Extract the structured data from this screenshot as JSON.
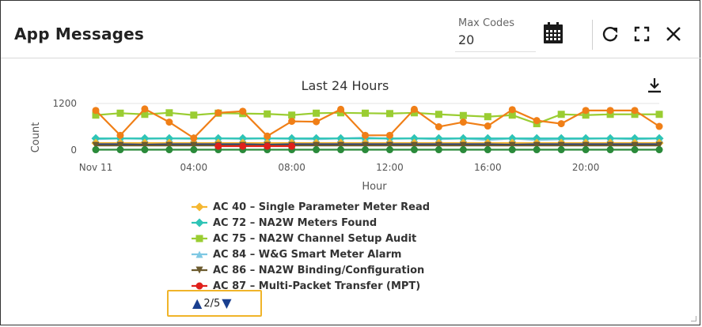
{
  "header": {
    "title": "App Messages",
    "max_codes": {
      "label": "Max Codes",
      "value": "20"
    },
    "icons": [
      "calendar-icon",
      "refresh-icon",
      "expand-icon",
      "close-icon"
    ]
  },
  "chart_data": {
    "type": "line",
    "title": "Last 24 Hours",
    "xlabel": "Hour",
    "ylabel": "Count",
    "x_ticks": [
      "Nov 11",
      "04:00",
      "08:00",
      "12:00",
      "16:00",
      "20:00"
    ],
    "y_ticks": [
      "1200",
      "0"
    ],
    "ylim": [
      -150,
      1300
    ],
    "x": [
      0,
      1,
      2,
      3,
      4,
      5,
      6,
      7,
      8,
      9,
      10,
      11,
      12,
      13,
      14,
      15,
      16,
      17,
      18,
      19,
      20,
      21,
      22,
      23
    ],
    "series": [
      {
        "name": "AC 40 – Single Parameter Meter Read",
        "color": "#f5b731",
        "marker": "diamond",
        "values": [
          180,
          180,
          180,
          180,
          180,
          180,
          180,
          180,
          180,
          180,
          180,
          180,
          180,
          180,
          180,
          180,
          180,
          180,
          180,
          180,
          180,
          180,
          180,
          180
        ]
      },
      {
        "name": "AC 72 – NA2W Meters Found",
        "color": "#2ec4b6",
        "marker": "diamond",
        "values": [
          300,
          300,
          300,
          300,
          300,
          300,
          300,
          300,
          300,
          300,
          300,
          300,
          300,
          300,
          300,
          300,
          300,
          300,
          300,
          300,
          300,
          300,
          300,
          300
        ]
      },
      {
        "name": "AC 75 – NA2W Channel Setup Audit",
        "color": "#9acd32",
        "marker": "square",
        "values": [
          900,
          950,
          920,
          960,
          900,
          950,
          940,
          930,
          900,
          950,
          960,
          950,
          940,
          960,
          920,
          890,
          860,
          900,
          680,
          920,
          900,
          920,
          920,
          920
        ]
      },
      {
        "name": "AC 84 – W&G Smart Meter Alarm",
        "color": "#7ec8e3",
        "marker": "triangle",
        "values": [
          280,
          300,
          290,
          300,
          290,
          300,
          290,
          300,
          290,
          280,
          300,
          320,
          290,
          300,
          280,
          300,
          260,
          300,
          260,
          280,
          290,
          300,
          280,
          300
        ]
      },
      {
        "name": "AC 86 – NA2W Binding/Configuration",
        "color": "#6b5a2e",
        "marker": "triangle-down",
        "values": [
          120,
          120,
          120,
          120,
          120,
          120,
          120,
          120,
          120,
          120,
          120,
          120,
          120,
          120,
          120,
          120,
          120,
          120,
          120,
          120,
          120,
          120,
          120,
          120
        ]
      },
      {
        "name": "AC 87 – Multi-Packet Transfer (MPT)",
        "color": "#e0201b",
        "marker": "circle",
        "values": [
          null,
          null,
          null,
          null,
          null,
          100,
          100,
          100,
          100,
          null,
          null,
          null,
          null,
          null,
          null,
          null,
          null,
          null,
          null,
          null,
          null,
          null,
          null,
          null
        ]
      },
      {
        "name": "",
        "color": "#f07f17",
        "marker": "circle",
        "values": [
          1020,
          380,
          1060,
          720,
          310,
          960,
          1000,
          360,
          740,
          730,
          1050,
          380,
          380,
          1050,
          600,
          720,
          620,
          1040,
          760,
          680,
          1020,
          1020,
          1020,
          610
        ]
      },
      {
        "name": "",
        "color": "#2a8a3a",
        "marker": "circle",
        "values": [
          10,
          10,
          10,
          10,
          10,
          10,
          10,
          10,
          10,
          10,
          10,
          10,
          10,
          10,
          10,
          10,
          10,
          10,
          10,
          10,
          10,
          10,
          10,
          10
        ]
      },
      {
        "name": "",
        "color": "#1f3f8f",
        "marker": "none",
        "values": [
          150,
          150,
          140,
          150,
          150,
          150,
          150,
          140,
          150,
          150,
          150,
          150,
          150,
          150,
          150,
          150,
          150,
          140,
          150,
          150,
          150,
          150,
          150,
          150
        ]
      }
    ]
  },
  "legend": {
    "items": [
      {
        "label": "AC 40 – Single Parameter Meter Read",
        "color": "#f5b731",
        "marker": "diamond"
      },
      {
        "label": "AC 72 – NA2W Meters Found",
        "color": "#2ec4b6",
        "marker": "diamond"
      },
      {
        "label": "AC 75 – NA2W Channel Setup Audit",
        "color": "#9acd32",
        "marker": "square"
      },
      {
        "label": "AC 84 – W&G Smart Meter Alarm",
        "color": "#7ec8e3",
        "marker": "triangle"
      },
      {
        "label": "AC 86 – NA2W Binding/Configuration",
        "color": "#6b5a2e",
        "marker": "triangle-down"
      },
      {
        "label": "AC 87 – Multi-Packet Transfer (MPT)",
        "color": "#e0201b",
        "marker": "circle"
      }
    ],
    "pager": {
      "text": "2/5",
      "up": "▲",
      "down": "▼"
    }
  }
}
